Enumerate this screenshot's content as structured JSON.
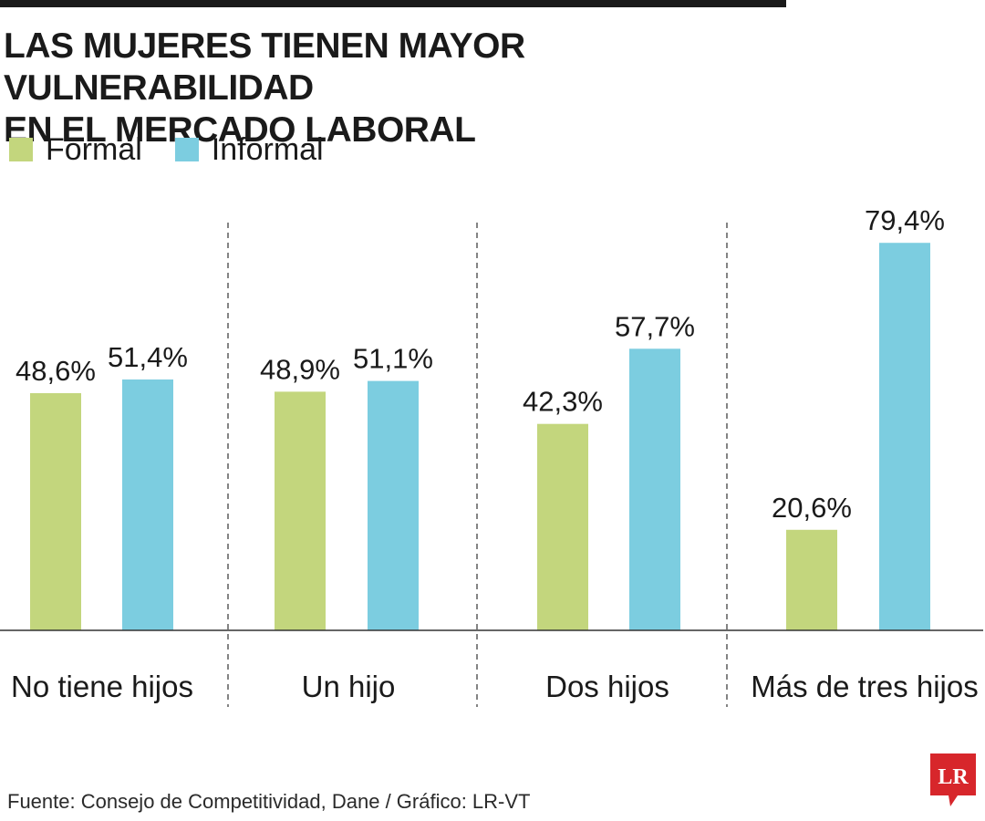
{
  "title_lines": [
    "LAS MUJERES TIENEN MAYOR VULNERABILIDAD",
    "EN EL MERCADO LABORAL"
  ],
  "legend": [
    {
      "label": "Formal",
      "color": "#c3d67d"
    },
    {
      "label": "Informal",
      "color": "#7ccde0"
    }
  ],
  "source": "Fuente: Consejo de Competitividad, Dane / Gráfico: LR-VT",
  "logo_text": "LR",
  "logo_color": "#d7262b",
  "chart_data": {
    "type": "bar",
    "categories": [
      "No tiene hijos",
      "Un hijo",
      "Dos hijos",
      "Más de tres hijos"
    ],
    "series": [
      {
        "name": "Formal",
        "values": [
          48.6,
          48.9,
          42.3,
          20.6
        ],
        "labels": [
          "48,6%",
          "48,9%",
          "42,3%",
          "20,6%"
        ],
        "color": "#c3d67d"
      },
      {
        "name": "Informal",
        "values": [
          51.4,
          51.1,
          57.7,
          79.4
        ],
        "labels": [
          "51,4%",
          "51,1%",
          "57,7%",
          "79,4%"
        ],
        "color": "#7ccde0"
      }
    ],
    "ylim": [
      0,
      100
    ],
    "grid": false,
    "legend_position": "top-left"
  }
}
